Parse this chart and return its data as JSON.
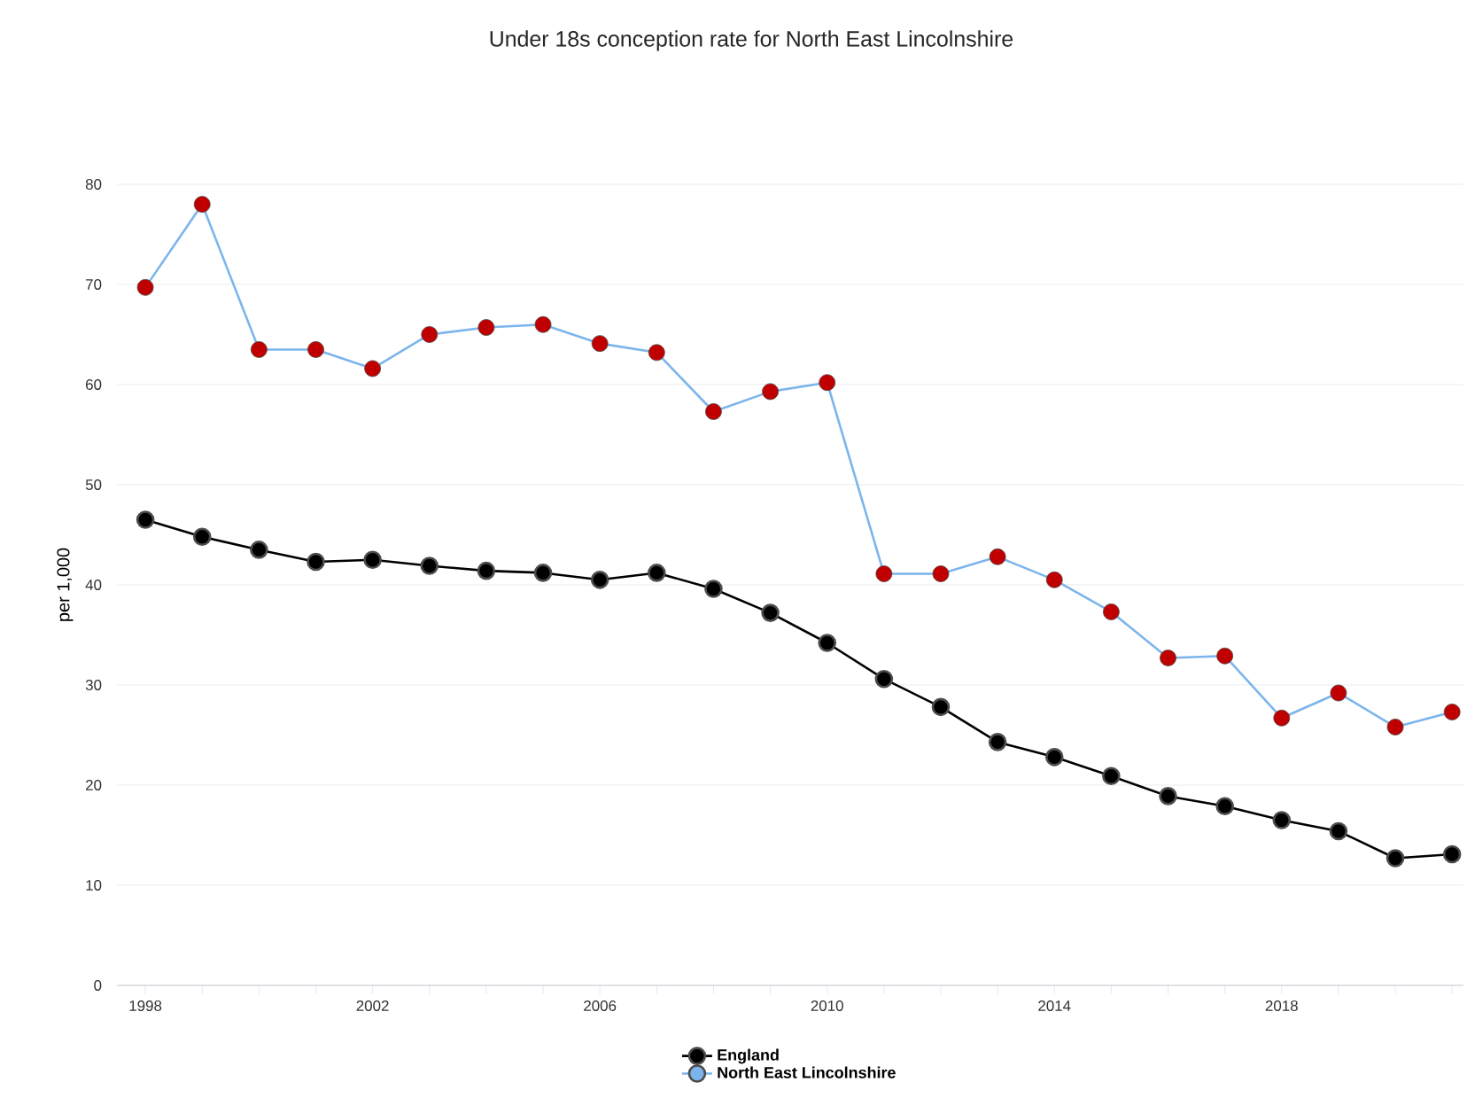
{
  "chart_data": {
    "type": "line",
    "title": "Under 18s conception rate for North East Lincolnshire",
    "ylabel": "per 1,000",
    "x": [
      1998,
      1999,
      2000,
      2001,
      2002,
      2003,
      2004,
      2005,
      2006,
      2007,
      2008,
      2009,
      2010,
      2011,
      2012,
      2013,
      2014,
      2015,
      2016,
      2017,
      2018,
      2019,
      2020,
      2021
    ],
    "series": [
      {
        "name": "England",
        "color": "#000000",
        "values": [
          46.5,
          44.8,
          43.5,
          42.3,
          42.5,
          41.9,
          41.4,
          41.2,
          40.5,
          41.2,
          39.6,
          37.2,
          34.2,
          30.6,
          27.8,
          24.3,
          22.8,
          20.9,
          18.9,
          17.9,
          16.5,
          15.4,
          12.7,
          13.1
        ]
      },
      {
        "name": "North East Lincolnshire",
        "color": "#7cb5ec",
        "colors": [
          "#c00000",
          "#c00000",
          "#c00000",
          "#c00000",
          "#c00000",
          "#c00000",
          "#c00000",
          "#c00000",
          "#c00000",
          "#c00000",
          "#c00000",
          "#c00000",
          "#c00000",
          "#c00000",
          "#c00000",
          "#c00000",
          "#c00000",
          "#c00000",
          "#c00000",
          "#c00000",
          "#c00000",
          "#c00000",
          "#c00000",
          "#c00000"
        ],
        "values": [
          69.7,
          78.0,
          63.5,
          63.5,
          61.6,
          65.0,
          65.7,
          66.0,
          64.1,
          63.2,
          57.3,
          59.3,
          60.2,
          41.1,
          41.1,
          42.8,
          40.5,
          37.3,
          32.7,
          32.9,
          26.7,
          29.2,
          25.8,
          27.3
        ]
      }
    ],
    "xlim": [
      1997.5,
      2021.2
    ],
    "xticks": [
      1998,
      {
        "value": 1999,
        "label": null
      },
      {
        "value": 2000,
        "label": null
      },
      {
        "value": 2001,
        "label": null
      },
      2002,
      {
        "value": 2003,
        "label": null
      },
      {
        "value": 2004,
        "label": null
      },
      {
        "value": 2005,
        "label": null
      },
      2006,
      {
        "value": 2007,
        "label": null
      },
      {
        "value": 2008,
        "label": null
      },
      {
        "value": 2009,
        "label": null
      },
      2010,
      {
        "value": 2011,
        "label": null
      },
      {
        "value": 2012,
        "label": null
      },
      {
        "value": 2013,
        "label": null
      },
      2014,
      {
        "value": 2015,
        "label": null
      },
      {
        "value": 2016,
        "label": null
      },
      {
        "value": 2017,
        "label": null
      },
      2018,
      {
        "value": 2019,
        "label": null
      },
      {
        "value": 2020,
        "label": null
      },
      {
        "value": 2021,
        "label": null
      }
    ],
    "ylim": [
      0,
      80
    ],
    "yticks": [
      0,
      10,
      20,
      30,
      40,
      50,
      60,
      70,
      80
    ],
    "grid": "y",
    "legend": "bottom",
    "marker": "circle",
    "line_style": "solid"
  }
}
